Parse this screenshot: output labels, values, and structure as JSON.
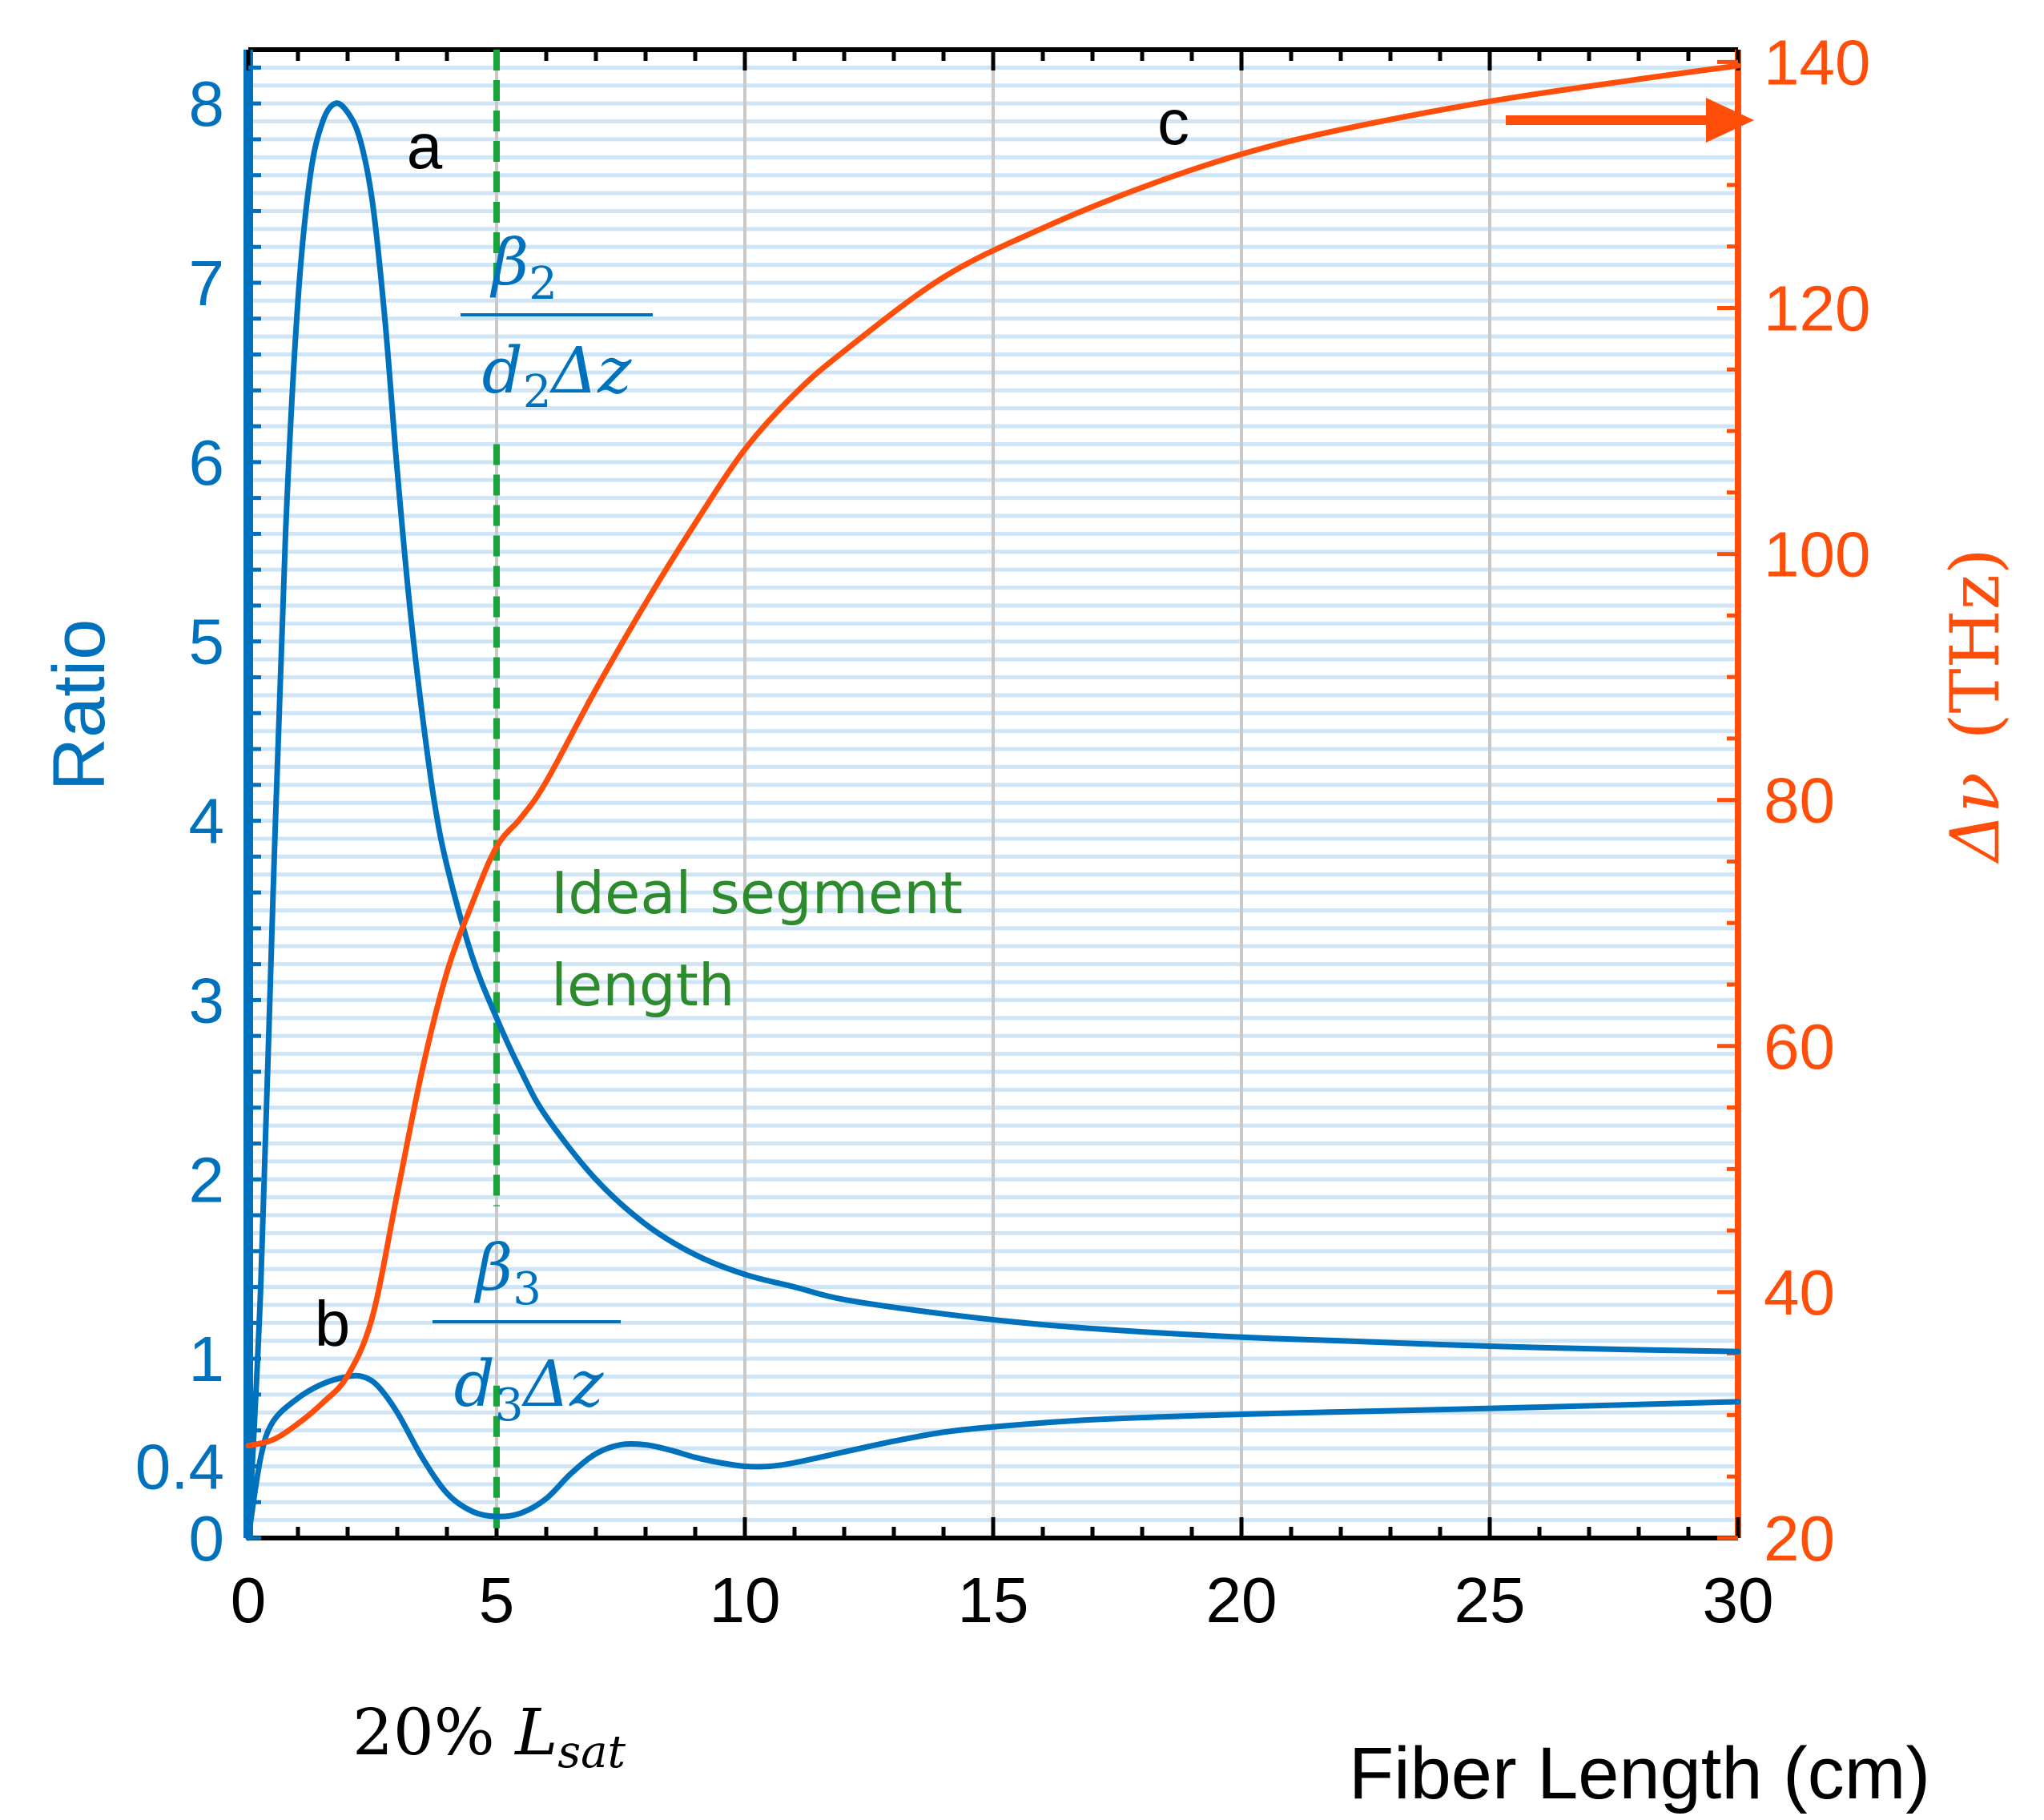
{
  "chart_data": {
    "type": "line",
    "xlabel": "Fiber Length (cm)",
    "ylabel_left": "Ratio",
    "ylabel_right_symbol": "Δν",
    "ylabel_right_unit": "(THz)",
    "xlim": [
      0,
      30
    ],
    "ylim_left": [
      0,
      8.3
    ],
    "ylim_right": [
      20,
      141
    ],
    "x_ticks": [
      0,
      5,
      10,
      15,
      20,
      25,
      30
    ],
    "x_tick_labels": [
      "0",
      "5",
      "10",
      "15",
      "20",
      "25",
      "30"
    ],
    "y_left_ticks": [
      0,
      0.4,
      1,
      2,
      3,
      4,
      5,
      6,
      7,
      8
    ],
    "y_left_tick_labels": [
      "0",
      "0.4",
      "1",
      "2",
      "3",
      "4",
      "5",
      "6",
      "7",
      "8"
    ],
    "y_right_ticks": [
      20,
      40,
      60,
      80,
      100,
      120,
      140
    ],
    "y_right_tick_labels": [
      "20",
      "40",
      "60",
      "80",
      "100",
      "120",
      "140"
    ],
    "grid": true,
    "colors": {
      "left_axis": "#0072bd",
      "right_axis": "#ff4e0a",
      "marker": "#1aa33a",
      "annotation_green": "#2d8a2d",
      "grid_h": "#cfe5f5",
      "grid_v": "#c9c9c9",
      "frame": "#000000"
    },
    "series": [
      {
        "name": "a",
        "axis": "left",
        "color": "#0072bd",
        "x": [
          0,
          0.25,
          0.5,
          0.75,
          1.0,
          1.25,
          1.5,
          1.75,
          2.0,
          2.25,
          2.5,
          2.75,
          3.0,
          3.25,
          3.5,
          3.75,
          4.0,
          4.5,
          5.0,
          5.5,
          6.0,
          7.0,
          8.0,
          9.0,
          10.0,
          11.0,
          12.0,
          14.0,
          16.0,
          18.0,
          20.0,
          22.0,
          25.0,
          28.0,
          30.0
        ],
        "y": [
          0.0,
          1.4,
          3.6,
          5.6,
          6.9,
          7.6,
          7.9,
          8.0,
          7.95,
          7.8,
          7.45,
          6.8,
          5.95,
          5.2,
          4.6,
          4.1,
          3.75,
          3.25,
          2.9,
          2.6,
          2.35,
          2.0,
          1.75,
          1.58,
          1.47,
          1.4,
          1.33,
          1.25,
          1.19,
          1.15,
          1.12,
          1.1,
          1.07,
          1.05,
          1.04
        ]
      },
      {
        "name": "b",
        "axis": "left",
        "color": "#0072bd",
        "x": [
          0,
          0.25,
          0.5,
          1.0,
          1.5,
          2.0,
          2.3,
          2.6,
          3.0,
          3.5,
          4.0,
          4.5,
          5.0,
          5.5,
          6.0,
          6.5,
          7.0,
          7.5,
          8.0,
          8.5,
          9.0,
          9.5,
          10.0,
          10.5,
          11.0,
          12.0,
          13.0,
          14.0,
          15.0,
          17.0,
          20.0,
          23.0,
          26.0,
          30.0
        ],
        "y": [
          0.0,
          0.45,
          0.65,
          0.78,
          0.86,
          0.9,
          0.9,
          0.85,
          0.7,
          0.45,
          0.25,
          0.15,
          0.12,
          0.14,
          0.22,
          0.36,
          0.47,
          0.52,
          0.52,
          0.49,
          0.45,
          0.42,
          0.4,
          0.4,
          0.42,
          0.48,
          0.54,
          0.59,
          0.62,
          0.66,
          0.69,
          0.71,
          0.73,
          0.76
        ]
      },
      {
        "name": "c",
        "axis": "right",
        "color": "#ff4e0a",
        "x": [
          0,
          0.5,
          1.0,
          1.5,
          2.0,
          2.5,
          3.0,
          3.5,
          4.0,
          4.5,
          5.0,
          5.5,
          6.0,
          7.0,
          8.0,
          9.0,
          10.0,
          11.0,
          12.0,
          14.0,
          16.0,
          18.0,
          20.0,
          22.0,
          25.0,
          28.0,
          30.0
        ],
        "y": [
          27.5,
          28,
          29.3,
          31,
          33.2,
          38,
          48,
          58,
          66,
          71.5,
          76.2,
          78.6,
          81.5,
          89,
          96,
          102.5,
          108.5,
          113,
          116.5,
          122.5,
          126.5,
          129.8,
          132.5,
          134.5,
          136.8,
          138.6,
          139.7
        ]
      }
    ],
    "vertical_marker": {
      "x": 5,
      "label_line1": "Ideal segment",
      "label_line2": "length",
      "below_axis_label_prefix": "20% ",
      "below_axis_label_var": "L",
      "below_axis_label_sub": "sat"
    },
    "annotations": {
      "curve_a_label": "a",
      "curve_b_label": "b",
      "curve_c_label": "c",
      "frac1_num": "β",
      "frac1_num_sub": "2",
      "frac1_den": "d",
      "frac1_den_sub": "2",
      "frac1_den_tail": "Δz",
      "frac2_num": "β",
      "frac2_num_sub": "3",
      "frac2_den": "d",
      "frac2_den_sub": "3",
      "frac2_den_tail": "Δz",
      "arrow_direction": "right"
    }
  }
}
